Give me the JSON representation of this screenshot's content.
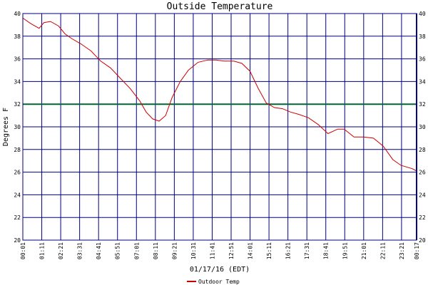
{
  "chart_data": {
    "type": "line",
    "title": "Outside Temperature",
    "xlabel": "01/17/16 (EDT)",
    "ylabel": "Degrees F",
    "ylim": [
      20,
      40
    ],
    "y_ticks": [
      20,
      22,
      24,
      26,
      28,
      30,
      32,
      34,
      36,
      38,
      40
    ],
    "x_tick_labels": [
      "00:01",
      "01:11",
      "02:21",
      "03:31",
      "04:41",
      "05:51",
      "07:01",
      "08:11",
      "09:21",
      "10:31",
      "11:41",
      "12:51",
      "14:01",
      "15:11",
      "16:21",
      "17:31",
      "18:41",
      "19:51",
      "21:01",
      "22:11",
      "23:21"
    ],
    "x_end_label": "00:17",
    "grid": true,
    "legend_position": "bottom-center",
    "reference_line": {
      "value": 32,
      "color": "#006633"
    },
    "series": [
      {
        "name": "Outdoor Temp",
        "color": "#cc0000",
        "x_unit": "hours after 00:01",
        "x": [
          0,
          0.5,
          1.0,
          1.3,
          1.7,
          2.2,
          2.6,
          3.0,
          3.6,
          4.2,
          4.8,
          5.4,
          6.0,
          6.6,
          7.2,
          7.6,
          8.0,
          8.4,
          8.8,
          9.2,
          9.7,
          10.2,
          10.8,
          11.4,
          11.9,
          12.4,
          13.0,
          13.5,
          14.0,
          14.5,
          15.0,
          15.5,
          16.0,
          16.5,
          17.0,
          17.6,
          18.2,
          18.8,
          19.4,
          19.8,
          20.4,
          21.0,
          21.6,
          22.2,
          22.8,
          23.3,
          24.0,
          24.26
        ],
        "values": [
          39.6,
          39.1,
          38.7,
          39.2,
          39.3,
          38.9,
          38.2,
          37.8,
          37.3,
          36.7,
          35.8,
          35.2,
          34.3,
          33.4,
          32.3,
          31.3,
          30.7,
          30.5,
          31.0,
          32.6,
          34.0,
          35.0,
          35.7,
          35.9,
          35.9,
          35.8,
          35.8,
          35.6,
          34.9,
          33.4,
          32.1,
          31.7,
          31.6,
          31.3,
          31.1,
          30.8,
          30.2,
          29.4,
          29.8,
          29.8,
          29.1,
          29.1,
          29.0,
          28.3,
          27.1,
          26.6,
          26.3,
          26.1
        ]
      }
    ]
  }
}
